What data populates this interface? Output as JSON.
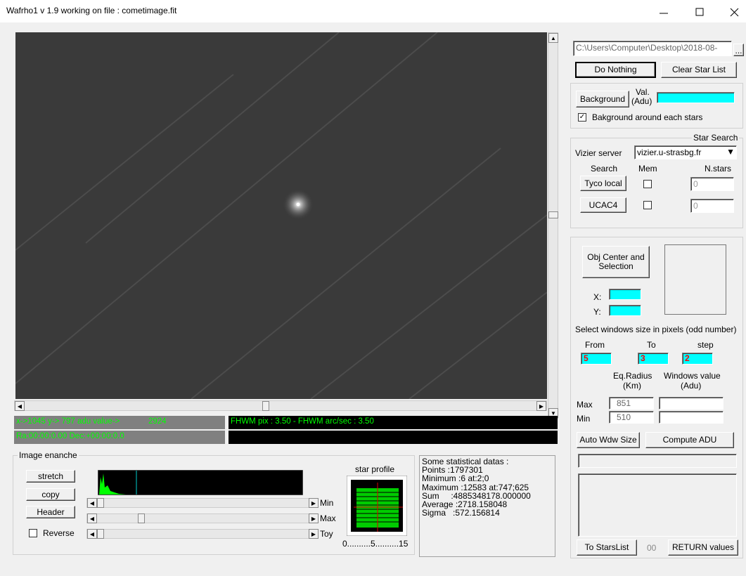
{
  "window": {
    "title": "Wafrho1 v 1.9 working on file : cometimage.fit"
  },
  "file": {
    "path": "C:\\Users\\Computer\\Desktop\\2018-08-",
    "browse": "..."
  },
  "actions": {
    "do_nothing": "Do Nothing",
    "clear_star_list": "Clear Star List"
  },
  "background": {
    "button": "Background",
    "val_label": [
      "Val.",
      "(Adu)"
    ],
    "checkbox": "Bakground around each stars"
  },
  "star_search": {
    "title": "Star Search",
    "server_label": "Vizier server",
    "server": "vizier.u-strasbg.fr",
    "headers": [
      "Search",
      "Mem",
      "N.stars"
    ],
    "rows": [
      {
        "button": "Tyco local",
        "count": "0"
      },
      {
        "button": "UCAC4",
        "count": "0"
      }
    ]
  },
  "object": {
    "button": [
      "Obj Center and",
      "Selection"
    ],
    "x_label": "X:",
    "y_label": "Y:",
    "window_size_label": "Select windows size in pixels (odd number)",
    "from_label": "From",
    "to_label": "To",
    "step_label": "step",
    "from": "5",
    "to": "3",
    "step": "2",
    "eq_radius_label": [
      "Eq.Radius",
      "(Km)"
    ],
    "window_value_label": [
      "Windows value",
      "(Adu)"
    ],
    "max_label": "Max",
    "max": "851",
    "min_label": "Min",
    "min": "510",
    "auto_size": "Auto Wdw Size",
    "compute": "Compute ADU",
    "to_list": "To StarsList",
    "counter": "00",
    "return": "RETURN values"
  },
  "status": {
    "cursor": "x->1045 y-> 797 adu value->",
    "adu": "2924",
    "fwhm": "FHWM pix : 3.50 - FHWM arc/sec : 3.50",
    "coords": "Ra:00:00:0.00 Dec:+00:00:0.0"
  },
  "enhance": {
    "title": "Image enanche",
    "stretch": "stretch",
    "copy": "copy",
    "header": "Header",
    "reverse": "Reverse",
    "min": "Min",
    "max": "Max",
    "toy": "Toy",
    "profile_title": "star profile",
    "profile_axis": "0..........5..........15"
  },
  "stats": {
    "lines": [
      "Some statistical datas :",
      "Points :1797301",
      "Minimum :6 at:2;0",
      "Maximum :12583 at:747;625",
      "Sum     :4885348178.000000",
      "Average :2718.158048",
      "Sigma   :572.156814"
    ]
  }
}
